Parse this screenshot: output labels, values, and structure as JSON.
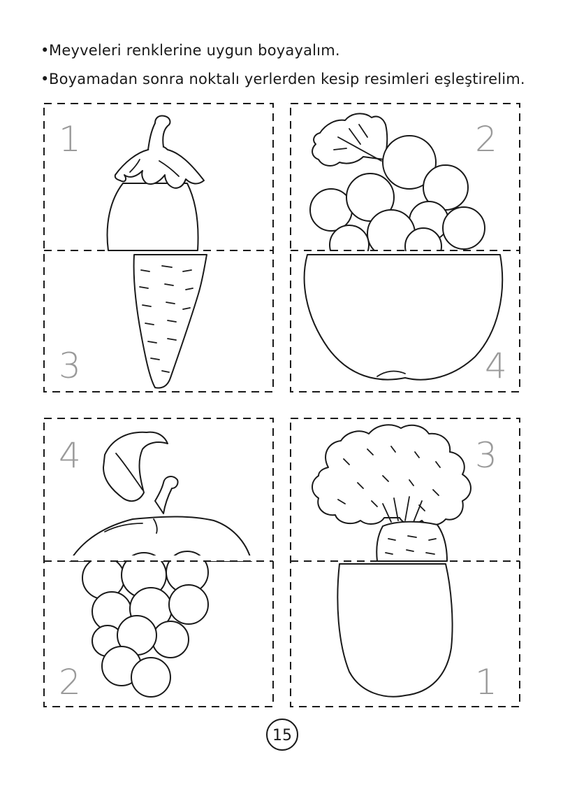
{
  "instructions": {
    "bullet": "•",
    "line1": "Meyveleri renklerine uygun boyayalım.",
    "line2": "Boyamadan sonra noktalı yerlerden kesip resimleri eşleştirelim."
  },
  "cards": [
    {
      "position": "top-left",
      "top_label": "1",
      "bottom_label": "3",
      "top_fruit": "eggplant",
      "bottom_fruit": "carrot"
    },
    {
      "position": "top-right",
      "top_label": "2",
      "bottom_label": "4",
      "top_fruit": "grapes",
      "bottom_fruit": "apple"
    },
    {
      "position": "bottom-left",
      "top_label": "4",
      "bottom_label": "2",
      "top_fruit": "apple",
      "bottom_fruit": "grapes"
    },
    {
      "position": "bottom-right",
      "top_label": "3",
      "bottom_label": "1",
      "top_fruit": "carrot",
      "bottom_fruit": "eggplant"
    }
  ],
  "page_number": "15"
}
